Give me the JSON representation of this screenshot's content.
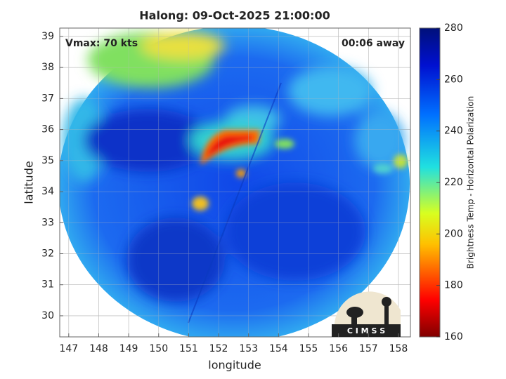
{
  "chart_data": {
    "type": "image",
    "title": "Halong: 09-Oct-2025 21:00:00",
    "annotations": [
      "Vmax: 70 kts",
      "00:06 away"
    ],
    "x_label": "longitude",
    "y_label": "latitude",
    "xlim": [
      146.7,
      158.4
    ],
    "xticks": [
      147,
      148,
      149,
      150,
      151,
      152,
      153,
      154,
      155,
      156,
      157,
      158
    ],
    "ylim": [
      29.32,
      39.27
    ],
    "yticks": [
      30,
      31,
      32,
      33,
      34,
      35,
      36,
      37,
      38,
      39
    ],
    "grid": true,
    "colorbar": {
      "label": "Brightness Temp - Horizontal Polarization",
      "lim": [
        160,
        280
      ],
      "ticks": [
        160,
        180,
        200,
        220,
        240,
        260,
        280
      ]
    },
    "logo_text": "C I M S S"
  }
}
